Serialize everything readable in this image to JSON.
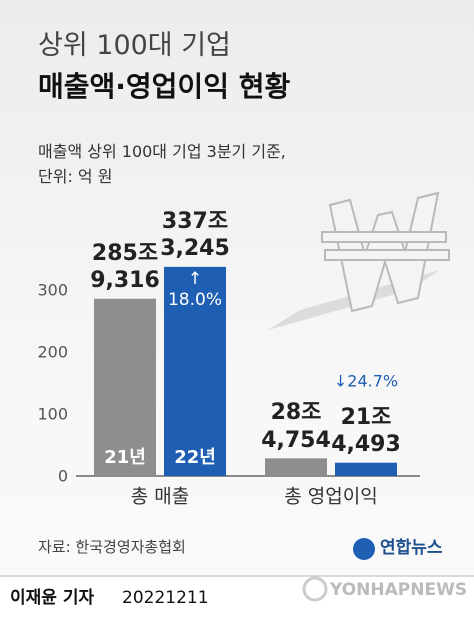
{
  "chart_data": {
    "type": "bar",
    "title": "상위 100대 기업",
    "subtitle": "매출액·영업이익 현황",
    "note": "매출액 상위 100대 기업 3분기 기준,\n단위: 억 원",
    "categories": [
      "총 매출",
      "총 영업이익"
    ],
    "series": [
      {
        "name": "21년",
        "color": "#8e8e8e",
        "values": [
          285.9316,
          28.4754
        ],
        "value_labels": [
          "285조\n9,316",
          "28조\n4,754"
        ]
      },
      {
        "name": "22년",
        "color": "#1e5fb3",
        "values": [
          337.3245,
          21.4493
        ],
        "value_labels": [
          "337조\n3,245",
          "21조\n4,493"
        ]
      }
    ],
    "annotations": [
      "↑\n18.0%",
      "↓24.7%"
    ],
    "ylim": [
      0,
      350
    ],
    "yticks": [
      0,
      100,
      200,
      300
    ],
    "grid": false,
    "source": "자료: 한국경영자총협회",
    "logo": "연합뉴스",
    "watermark": "YONHAPNEWS",
    "reporter": "이재윤 기자",
    "date": "20221211"
  }
}
